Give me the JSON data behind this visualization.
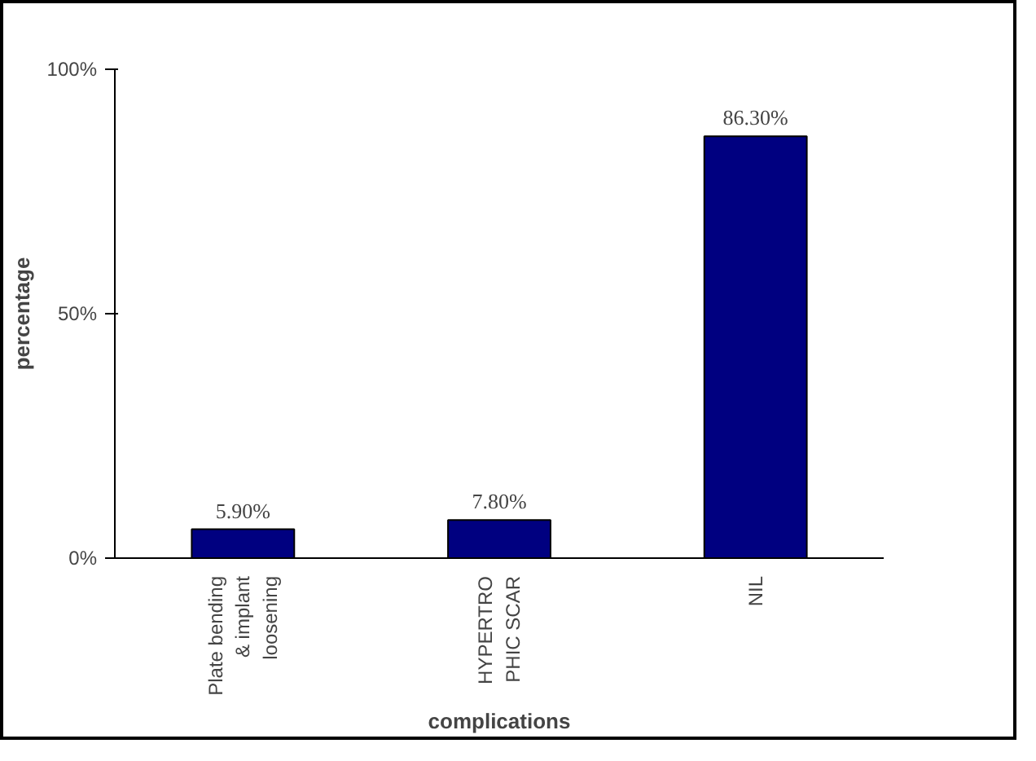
{
  "chart_data": {
    "type": "bar",
    "xlabel": "complications",
    "ylabel": "percentage",
    "categories": [
      "Plate bending\n& implant\nloosening",
      "HYPERTRO\nPHIC SCAR",
      "NIL"
    ],
    "values": [
      5.9,
      7.8,
      86.3
    ],
    "value_labels": [
      "5.90%",
      "7.80%",
      "86.30%"
    ],
    "color": "#000080",
    "ylim": [
      0,
      100
    ],
    "yticks": [
      {
        "value": 0,
        "label": "0%"
      },
      {
        "value": 50,
        "label": "50%"
      },
      {
        "value": 100,
        "label": "100%"
      }
    ],
    "grid": false
  }
}
